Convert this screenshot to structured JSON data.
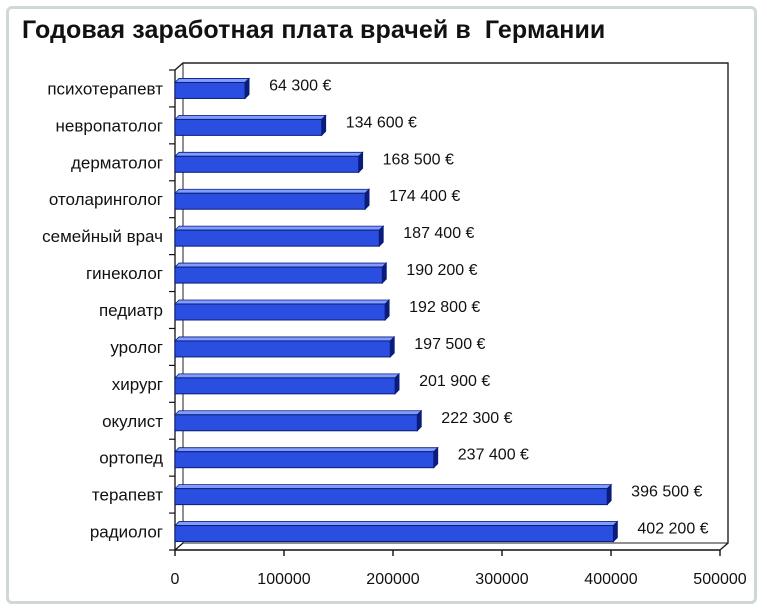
{
  "chart_data": {
    "type": "bar",
    "orientation": "horizontal",
    "title": "Годовая заработная плата врачей в  Германии",
    "categories": [
      "психотерапевт",
      "невропатолог",
      "дерматолог",
      "отоларинголог",
      "семейный врач",
      "гинеколог",
      "педиатр",
      "уролог",
      "хирург",
      "окулист",
      "ортопед",
      "терапевт",
      "радиолог"
    ],
    "values": [
      64300,
      134600,
      168500,
      174400,
      187400,
      190200,
      192800,
      197500,
      201900,
      222300,
      237400,
      396500,
      402200
    ],
    "value_labels": [
      "64 300 €",
      "134 600 €",
      "168 500 €",
      "174 400 €",
      "187 400 €",
      "190 200 €",
      "192 800 €",
      "197 500 €",
      "201 900 €",
      "222 300 €",
      "237 400 €",
      "396 500 €",
      "402 200 €"
    ],
    "xlim": [
      0,
      500000
    ],
    "x_ticks": [
      0,
      100000,
      200000,
      300000,
      400000,
      500000
    ],
    "x_tick_labels": [
      "0",
      "100000",
      "200000",
      "300000",
      "400000",
      "500000"
    ],
    "xlabel": "",
    "ylabel": "",
    "grid": false,
    "bar_color": "#2a4fe0",
    "bar_dark": "#0b1c7a",
    "bar_light": "#7f9dff"
  }
}
